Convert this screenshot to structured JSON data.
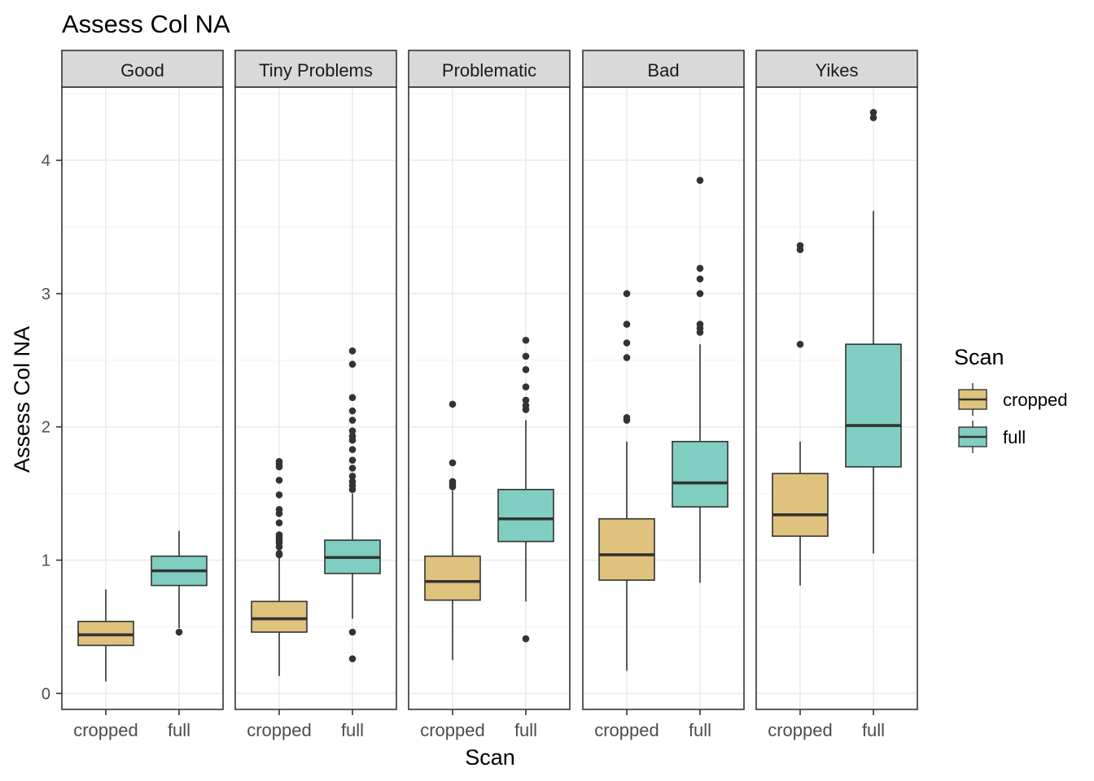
{
  "chart_data": {
    "type": "box",
    "title": "Assess Col NA",
    "xlabel": "Scan",
    "ylabel": "Assess Col NA",
    "ylim": [
      -0.12,
      4.55
    ],
    "yticks": [
      0,
      1,
      2,
      3,
      4
    ],
    "categories": [
      "cropped",
      "full"
    ],
    "grid": true,
    "legend": {
      "title": "Scan",
      "position": "right",
      "entries": [
        {
          "label": "cropped",
          "color": "#dfc27d"
        },
        {
          "label": "full",
          "color": "#80cdc1"
        }
      ]
    },
    "box_outline_color": "#333333",
    "panels": [
      {
        "label": "Good",
        "boxes": [
          {
            "group": "cropped",
            "q1": 0.36,
            "median": 0.44,
            "q3": 0.54,
            "whisker_low": 0.09,
            "whisker_high": 0.78,
            "outliers": []
          },
          {
            "group": "full",
            "q1": 0.81,
            "median": 0.92,
            "q3": 1.03,
            "whisker_low": 0.49,
            "whisker_high": 1.22,
            "outliers": [
              0.46
            ]
          }
        ]
      },
      {
        "label": "Tiny Problems",
        "boxes": [
          {
            "group": "cropped",
            "q1": 0.46,
            "median": 0.56,
            "q3": 0.69,
            "whisker_low": 0.13,
            "whisker_high": 1.02,
            "outliers": [
              1.04,
              1.05,
              1.1,
              1.13,
              1.15,
              1.17,
              1.19,
              1.28,
              1.35,
              1.38,
              1.49,
              1.6,
              1.7,
              1.72,
              1.74
            ]
          },
          {
            "group": "full",
            "q1": 0.9,
            "median": 1.02,
            "q3": 1.15,
            "whisker_low": 0.56,
            "whisker_high": 1.5,
            "outliers": [
              0.26,
              0.46,
              1.53,
              1.56,
              1.59,
              1.63,
              1.69,
              1.75,
              1.83,
              1.9,
              1.93,
              1.97,
              2.05,
              2.12,
              2.22,
              2.47,
              2.57
            ]
          }
        ]
      },
      {
        "label": "Problematic",
        "boxes": [
          {
            "group": "cropped",
            "q1": 0.7,
            "median": 0.84,
            "q3": 1.03,
            "whisker_low": 0.25,
            "whisker_high": 1.52,
            "outliers": [
              1.55,
              1.57,
              1.59,
              1.73,
              2.17
            ]
          },
          {
            "group": "full",
            "q1": 1.14,
            "median": 1.31,
            "q3": 1.53,
            "whisker_low": 0.69,
            "whisker_high": 2.05,
            "outliers": [
              0.41,
              2.13,
              2.16,
              2.2,
              2.3,
              2.43,
              2.53,
              2.65
            ]
          }
        ]
      },
      {
        "label": "Bad",
        "boxes": [
          {
            "group": "cropped",
            "q1": 0.85,
            "median": 1.04,
            "q3": 1.31,
            "whisker_low": 0.17,
            "whisker_high": 1.89,
            "outliers": [
              2.05,
              2.07,
              2.52,
              2.63,
              2.77,
              3.0
            ]
          },
          {
            "group": "full",
            "q1": 1.4,
            "median": 1.58,
            "q3": 1.89,
            "whisker_low": 0.83,
            "whisker_high": 2.62,
            "outliers": [
              2.71,
              2.74,
              2.77,
              3.0,
              3.11,
              3.19,
              3.85
            ]
          }
        ]
      },
      {
        "label": "Yikes",
        "boxes": [
          {
            "group": "cropped",
            "q1": 1.18,
            "median": 1.34,
            "q3": 1.65,
            "whisker_low": 0.81,
            "whisker_high": 1.89,
            "outliers": [
              2.62,
              3.33,
              3.36
            ]
          },
          {
            "group": "full",
            "q1": 1.7,
            "median": 2.01,
            "q3": 2.62,
            "whisker_low": 1.05,
            "whisker_high": 3.62,
            "outliers": [
              4.32,
              4.36
            ]
          }
        ]
      }
    ]
  }
}
